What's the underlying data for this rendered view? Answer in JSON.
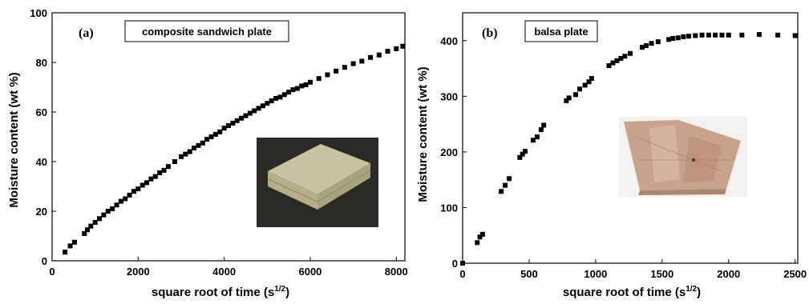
{
  "chart_data": [
    {
      "type": "scatter",
      "panel_label": "(a)",
      "box_label": "composite sandwich plate",
      "xlabel": "square root of time (s",
      "xlabel_sup": "1/2",
      "xlabel_end": ")",
      "ylabel": "Moisture content (wt %)",
      "xlim": [
        0,
        8200
      ],
      "ylim": [
        0,
        100
      ],
      "xticks": [
        0,
        2000,
        4000,
        6000,
        8000
      ],
      "yticks": [
        0,
        20,
        40,
        60,
        80,
        100
      ],
      "x": [
        300,
        420,
        520,
        750,
        820,
        900,
        1000,
        1100,
        1200,
        1300,
        1400,
        1500,
        1600,
        1700,
        1800,
        1900,
        2000,
        2100,
        2200,
        2300,
        2400,
        2500,
        2600,
        2700,
        2850,
        3000,
        3100,
        3200,
        3300,
        3400,
        3500,
        3600,
        3700,
        3800,
        3900,
        4000,
        4100,
        4200,
        4300,
        4400,
        4500,
        4600,
        4700,
        4800,
        4900,
        5000,
        5100,
        5200,
        5300,
        5400,
        5500,
        5600,
        5700,
        5800,
        5900,
        6000,
        6200,
        6400,
        6600,
        6800,
        7000,
        7200,
        7400,
        7600,
        7800,
        8000,
        8150
      ],
      "y": [
        3.5,
        6,
        7.5,
        11,
        12.5,
        14,
        15.5,
        17,
        18.5,
        20,
        21,
        22.5,
        24,
        25,
        26.5,
        28,
        29,
        30.5,
        31.5,
        33,
        34,
        35.5,
        36.5,
        38,
        40,
        42,
        43,
        44,
        45.5,
        46.5,
        47.5,
        49,
        50,
        51,
        52,
        53.5,
        54.5,
        55.5,
        56.5,
        57.5,
        58.5,
        59.5,
        60.5,
        61.5,
        62.5,
        63.5,
        64.5,
        65.5,
        66,
        67,
        68,
        69,
        69.5,
        70.5,
        71,
        72,
        73.5,
        75,
        76.5,
        78,
        79.5,
        80.5,
        82,
        83,
        84.5,
        85.5,
        86.5
      ]
    },
    {
      "type": "scatter",
      "panel_label": "(b)",
      "box_label": "balsa plate",
      "xlabel": "square root of time (s",
      "xlabel_sup": "1/2",
      "xlabel_end": ")",
      "ylabel": "Moisture content (wt %)",
      "xlim": [
        0,
        2520
      ],
      "ylim": [
        0,
        450
      ],
      "xticks": [
        0,
        500,
        1000,
        1500,
        2000,
        2500
      ],
      "yticks": [
        0,
        100,
        200,
        300,
        400
      ],
      "x": [
        0,
        110,
        130,
        150,
        290,
        320,
        350,
        430,
        450,
        470,
        530,
        560,
        590,
        610,
        780,
        800,
        850,
        880,
        920,
        950,
        970,
        1100,
        1130,
        1160,
        1190,
        1220,
        1260,
        1350,
        1380,
        1420,
        1470,
        1550,
        1580,
        1620,
        1660,
        1700,
        1750,
        1800,
        1850,
        1900,
        1950,
        2000,
        2100,
        2230,
        2370,
        2500
      ],
      "y": [
        0,
        37,
        47,
        52,
        129,
        140,
        152,
        190,
        196,
        201,
        221,
        227,
        240,
        248,
        292,
        297,
        303,
        313,
        320,
        326,
        332,
        355,
        360,
        364,
        368,
        372,
        377,
        388,
        391,
        395,
        398,
        402,
        404,
        405,
        407,
        408,
        409,
        410,
        410,
        410,
        410,
        410,
        410,
        411,
        410,
        409
      ]
    }
  ]
}
